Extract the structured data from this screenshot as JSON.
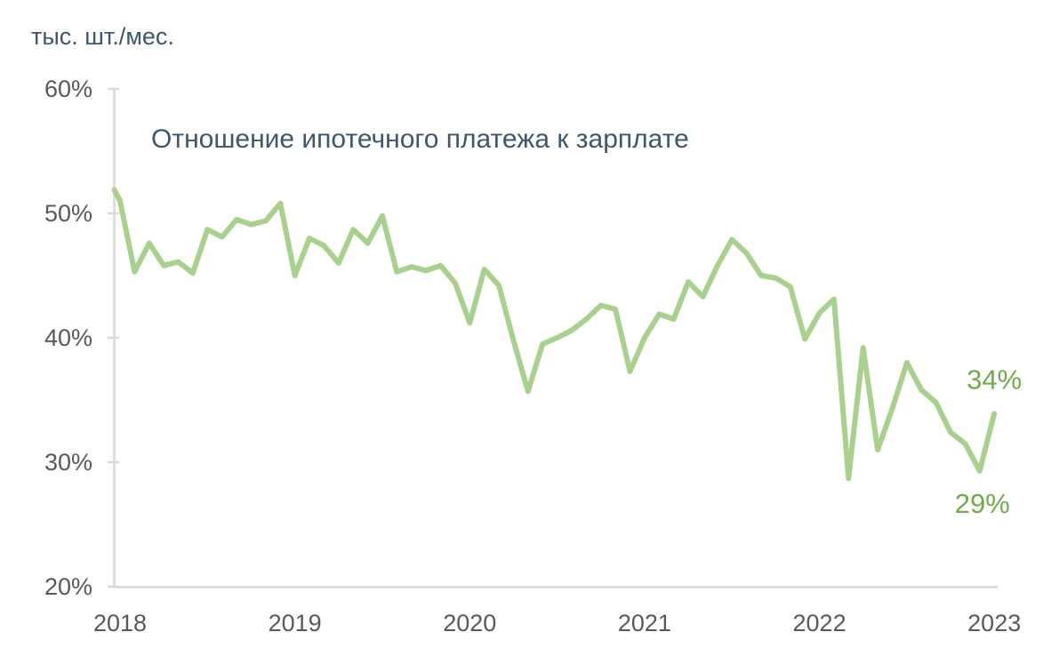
{
  "chart_data": {
    "type": "line",
    "title": "Отношение ипотечного платежа к зарплате",
    "unit_label": "тыс. шт./мес.",
    "xlabel": "",
    "ylabel": "",
    "x": [
      "2018-01",
      "2018-02",
      "2018-03",
      "2018-04",
      "2018-05",
      "2018-06",
      "2018-07",
      "2018-08",
      "2018-09",
      "2018-10",
      "2018-11",
      "2018-12",
      "2019-01",
      "2019-02",
      "2019-03",
      "2019-04",
      "2019-05",
      "2019-06",
      "2019-07",
      "2019-08",
      "2019-09",
      "2019-10",
      "2019-11",
      "2019-12",
      "2020-01",
      "2020-02",
      "2020-03",
      "2020-04",
      "2020-05",
      "2020-06",
      "2020-07",
      "2020-08",
      "2020-09",
      "2020-10",
      "2020-11",
      "2020-12",
      "2021-01",
      "2021-02",
      "2021-03",
      "2021-04",
      "2021-05",
      "2021-06",
      "2021-07",
      "2021-08",
      "2021-09",
      "2021-10",
      "2021-11",
      "2021-12",
      "2022-01",
      "2022-02",
      "2022-03",
      "2022-04",
      "2022-05",
      "2022-06",
      "2022-07",
      "2022-08",
      "2022-09",
      "2022-10",
      "2022-11",
      "2022-12",
      "2023-01"
    ],
    "values": [
      51.0,
      45.3,
      47.6,
      45.8,
      46.1,
      45.2,
      48.7,
      48.1,
      49.5,
      49.1,
      49.4,
      50.8,
      45.0,
      48.0,
      47.4,
      46.0,
      48.7,
      47.6,
      49.8,
      45.3,
      45.7,
      45.4,
      45.8,
      44.4,
      41.2,
      45.5,
      44.2,
      39.8,
      35.7,
      39.5,
      40.0,
      40.6,
      41.5,
      42.6,
      42.3,
      37.3,
      40.0,
      41.9,
      41.5,
      44.5,
      43.3,
      45.8,
      47.9,
      46.8,
      45.0,
      44.8,
      44.1,
      39.9,
      42.0,
      43.1,
      28.7,
      39.2,
      31.0,
      34.3,
      38.0,
      35.8,
      34.8,
      32.4,
      31.5,
      29.3,
      33.9
    ],
    "lead_in_value": 51.9,
    "x_tick_labels": [
      "2018",
      "2019",
      "2020",
      "2021",
      "2022",
      "2023"
    ],
    "y_tick_values": [
      60,
      50,
      40,
      30,
      20
    ],
    "y_tick_labels": [
      "60%",
      "50%",
      "40%",
      "30%",
      "20%"
    ],
    "ylim": [
      20,
      60
    ],
    "grid": false,
    "legend": false,
    "annotations": [
      {
        "text": "34%",
        "month_index": 60,
        "value": 34,
        "placement": "above"
      },
      {
        "text": "29%",
        "month_index": 59,
        "value": 29,
        "placement": "below"
      }
    ],
    "colors": {
      "line": "#a9d18e",
      "annotation": "#70ad47",
      "axis": "#d9d9d9",
      "tick_label": "#595959",
      "title": "#3e566e"
    }
  }
}
